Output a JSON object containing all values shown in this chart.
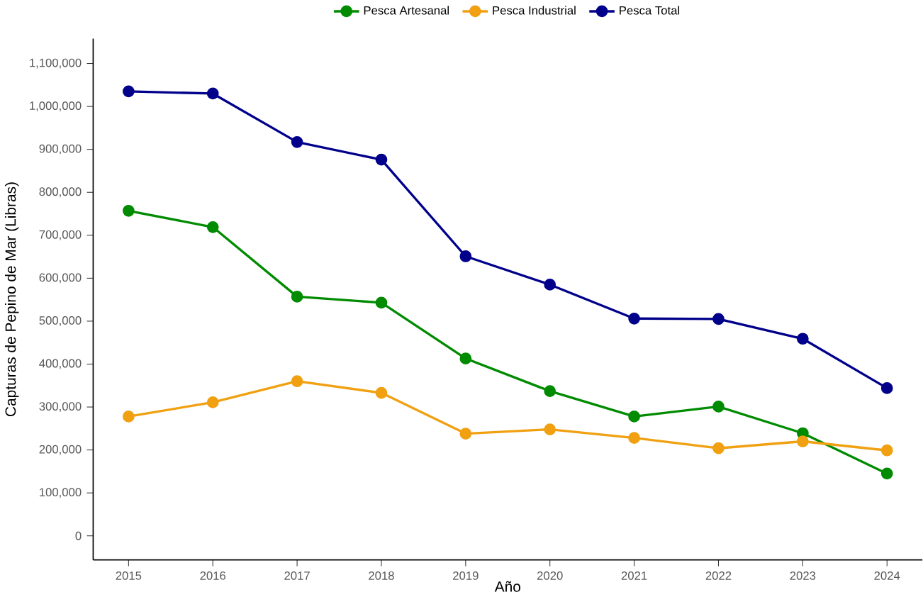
{
  "chart_data": {
    "type": "line",
    "xlabel": "Año",
    "ylabel": "Capturas de Pepino de Mar (Libras)",
    "x": [
      2015,
      2016,
      2017,
      2018,
      2019,
      2020,
      2021,
      2022,
      2023,
      2024
    ],
    "series": [
      {
        "name": "Pesca Artesanal",
        "color": "#008b00",
        "values": [
          757000,
          719000,
          557000,
          543000,
          413000,
          337000,
          278000,
          301000,
          239000,
          145000
        ]
      },
      {
        "name": "Pesca Industrial",
        "color": "#f0a010",
        "values": [
          278000,
          311000,
          360000,
          333000,
          238000,
          248000,
          228000,
          204000,
          220000,
          199000
        ]
      },
      {
        "name": "Pesca Total",
        "color": "#00008b",
        "values": [
          1035000,
          1030000,
          917000,
          876000,
          651000,
          585000,
          506000,
          505000,
          459000,
          344000
        ]
      }
    ],
    "xlim": [
      2014.58,
      2024.42
    ],
    "ylim": [
      -56000,
      1158000
    ],
    "xticks": [
      2015,
      2016,
      2017,
      2018,
      2019,
      2020,
      2021,
      2022,
      2023,
      2024
    ],
    "yticks": [
      {
        "value": 0,
        "label": "0"
      },
      {
        "value": 100000,
        "label": "100,000"
      },
      {
        "value": 200000,
        "label": "200,000"
      },
      {
        "value": 300000,
        "label": "300,000"
      },
      {
        "value": 400000,
        "label": "400,000"
      },
      {
        "value": 500000,
        "label": "500,000"
      },
      {
        "value": 600000,
        "label": "600,000"
      },
      {
        "value": 700000,
        "label": "700,000"
      },
      {
        "value": 800000,
        "label": "800,000"
      },
      {
        "value": 900000,
        "label": "900,000"
      },
      {
        "value": 1000000,
        "label": "1,000,000"
      },
      {
        "value": 1100000,
        "label": "1,100,000"
      }
    ],
    "grid": false,
    "legend": "top",
    "marker": "circle",
    "line_style": "solid"
  }
}
